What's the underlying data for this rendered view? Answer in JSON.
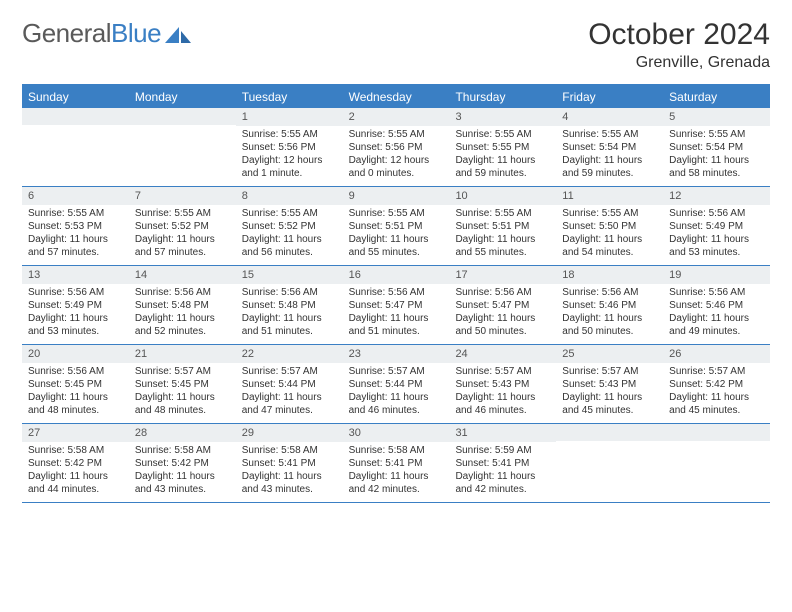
{
  "brand": {
    "part1": "General",
    "part2": "Blue"
  },
  "title": "October 2024",
  "location": "Grenville, Grenada",
  "colors": {
    "accent": "#3a7fc4",
    "dayBg": "#eceff1",
    "text": "#333333"
  },
  "dow": [
    "Sunday",
    "Monday",
    "Tuesday",
    "Wednesday",
    "Thursday",
    "Friday",
    "Saturday"
  ],
  "weeks": [
    [
      null,
      null,
      {
        "n": "1",
        "sr": "5:55 AM",
        "ss": "5:56 PM",
        "dl": "12 hours and 1 minute."
      },
      {
        "n": "2",
        "sr": "5:55 AM",
        "ss": "5:56 PM",
        "dl": "12 hours and 0 minutes."
      },
      {
        "n": "3",
        "sr": "5:55 AM",
        "ss": "5:55 PM",
        "dl": "11 hours and 59 minutes."
      },
      {
        "n": "4",
        "sr": "5:55 AM",
        "ss": "5:54 PM",
        "dl": "11 hours and 59 minutes."
      },
      {
        "n": "5",
        "sr": "5:55 AM",
        "ss": "5:54 PM",
        "dl": "11 hours and 58 minutes."
      }
    ],
    [
      {
        "n": "6",
        "sr": "5:55 AM",
        "ss": "5:53 PM",
        "dl": "11 hours and 57 minutes."
      },
      {
        "n": "7",
        "sr": "5:55 AM",
        "ss": "5:52 PM",
        "dl": "11 hours and 57 minutes."
      },
      {
        "n": "8",
        "sr": "5:55 AM",
        "ss": "5:52 PM",
        "dl": "11 hours and 56 minutes."
      },
      {
        "n": "9",
        "sr": "5:55 AM",
        "ss": "5:51 PM",
        "dl": "11 hours and 55 minutes."
      },
      {
        "n": "10",
        "sr": "5:55 AM",
        "ss": "5:51 PM",
        "dl": "11 hours and 55 minutes."
      },
      {
        "n": "11",
        "sr": "5:55 AM",
        "ss": "5:50 PM",
        "dl": "11 hours and 54 minutes."
      },
      {
        "n": "12",
        "sr": "5:56 AM",
        "ss": "5:49 PM",
        "dl": "11 hours and 53 minutes."
      }
    ],
    [
      {
        "n": "13",
        "sr": "5:56 AM",
        "ss": "5:49 PM",
        "dl": "11 hours and 53 minutes."
      },
      {
        "n": "14",
        "sr": "5:56 AM",
        "ss": "5:48 PM",
        "dl": "11 hours and 52 minutes."
      },
      {
        "n": "15",
        "sr": "5:56 AM",
        "ss": "5:48 PM",
        "dl": "11 hours and 51 minutes."
      },
      {
        "n": "16",
        "sr": "5:56 AM",
        "ss": "5:47 PM",
        "dl": "11 hours and 51 minutes."
      },
      {
        "n": "17",
        "sr": "5:56 AM",
        "ss": "5:47 PM",
        "dl": "11 hours and 50 minutes."
      },
      {
        "n": "18",
        "sr": "5:56 AM",
        "ss": "5:46 PM",
        "dl": "11 hours and 50 minutes."
      },
      {
        "n": "19",
        "sr": "5:56 AM",
        "ss": "5:46 PM",
        "dl": "11 hours and 49 minutes."
      }
    ],
    [
      {
        "n": "20",
        "sr": "5:56 AM",
        "ss": "5:45 PM",
        "dl": "11 hours and 48 minutes."
      },
      {
        "n": "21",
        "sr": "5:57 AM",
        "ss": "5:45 PM",
        "dl": "11 hours and 48 minutes."
      },
      {
        "n": "22",
        "sr": "5:57 AM",
        "ss": "5:44 PM",
        "dl": "11 hours and 47 minutes."
      },
      {
        "n": "23",
        "sr": "5:57 AM",
        "ss": "5:44 PM",
        "dl": "11 hours and 46 minutes."
      },
      {
        "n": "24",
        "sr": "5:57 AM",
        "ss": "5:43 PM",
        "dl": "11 hours and 46 minutes."
      },
      {
        "n": "25",
        "sr": "5:57 AM",
        "ss": "5:43 PM",
        "dl": "11 hours and 45 minutes."
      },
      {
        "n": "26",
        "sr": "5:57 AM",
        "ss": "5:42 PM",
        "dl": "11 hours and 45 minutes."
      }
    ],
    [
      {
        "n": "27",
        "sr": "5:58 AM",
        "ss": "5:42 PM",
        "dl": "11 hours and 44 minutes."
      },
      {
        "n": "28",
        "sr": "5:58 AM",
        "ss": "5:42 PM",
        "dl": "11 hours and 43 minutes."
      },
      {
        "n": "29",
        "sr": "5:58 AM",
        "ss": "5:41 PM",
        "dl": "11 hours and 43 minutes."
      },
      {
        "n": "30",
        "sr": "5:58 AM",
        "ss": "5:41 PM",
        "dl": "11 hours and 42 minutes."
      },
      {
        "n": "31",
        "sr": "5:59 AM",
        "ss": "5:41 PM",
        "dl": "11 hours and 42 minutes."
      },
      null,
      null
    ]
  ],
  "labels": {
    "sunrise": "Sunrise: ",
    "sunset": "Sunset: ",
    "daylight": "Daylight: "
  }
}
